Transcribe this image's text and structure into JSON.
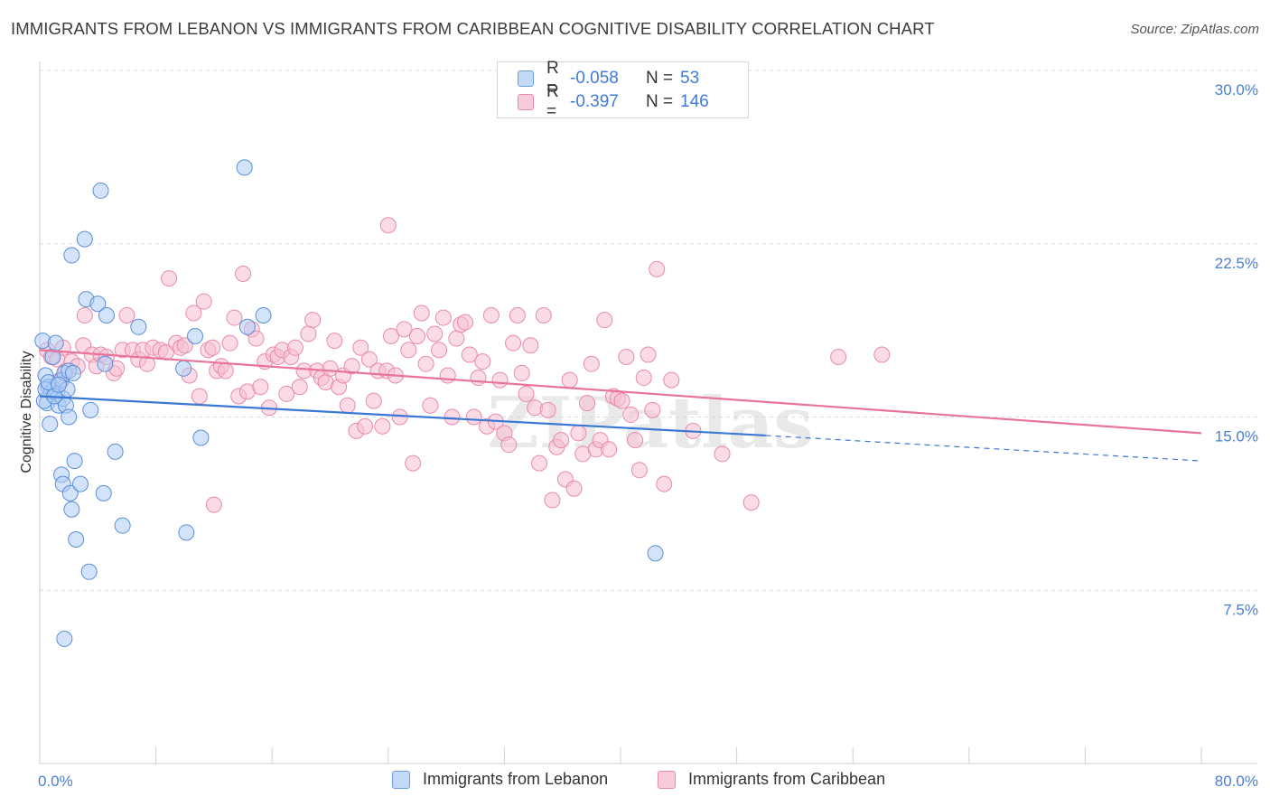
{
  "title": "IMMIGRANTS FROM LEBANON VS IMMIGRANTS FROM CARIBBEAN COGNITIVE DISABILITY CORRELATION CHART",
  "source": "Source: ZipAtlas.com",
  "watermark": "ZIPatlas",
  "legend": {
    "rows": [
      {
        "r_label": "R =",
        "r_value": "-0.058",
        "n_label": "N =",
        "n_value": "53",
        "color": "#aeccf5",
        "border": "#6a9de0"
      },
      {
        "r_label": "R =",
        "r_value": "-0.397",
        "n_label": "N =",
        "n_value": "146",
        "color": "#f7bfd2",
        "border": "#e88aab"
      }
    ]
  },
  "bottom_legend": {
    "lebanon": "Immigrants from Lebanon",
    "caribbean": "Immigrants from Caribbean"
  },
  "chart_data": {
    "type": "scatter",
    "ylabel": "Cognitive Disability",
    "xlabel": "",
    "xlim": [
      0,
      80
    ],
    "ylim": [
      0,
      30
    ],
    "x_tick_labels": [
      "0.0%",
      "80.0%"
    ],
    "y_ticks": [
      7.5,
      15.0,
      22.5,
      30.0
    ],
    "y_tick_labels": [
      "7.5%",
      "15.0%",
      "22.5%",
      "30.0%"
    ],
    "grid": "horizontal dashed",
    "colors": {
      "lebanon": "#3a78d4",
      "caribbean": "#e8739b"
    },
    "series": [
      {
        "name": "Immigrants from Lebanon",
        "trend": {
          "x": [
            0,
            50
          ],
          "y": [
            15.9,
            14.2
          ],
          "dashed_to": [
            80,
            13.1
          ]
        },
        "points": [
          [
            0.2,
            18.3
          ],
          [
            0.4,
            16.8
          ],
          [
            0.5,
            15.6
          ],
          [
            0.6,
            16.3
          ],
          [
            0.7,
            14.7
          ],
          [
            0.8,
            16.1
          ],
          [
            0.9,
            17.6
          ],
          [
            1.0,
            16.2
          ],
          [
            1.1,
            18.2
          ],
          [
            1.2,
            16.0
          ],
          [
            1.3,
            15.5
          ],
          [
            1.5,
            16.6
          ],
          [
            1.6,
            15.8
          ],
          [
            1.7,
            16.9
          ],
          [
            1.8,
            15.5
          ],
          [
            1.9,
            16.2
          ],
          [
            1.5,
            12.5
          ],
          [
            1.6,
            12.1
          ],
          [
            2.0,
            17.0
          ],
          [
            2.0,
            15.0
          ],
          [
            2.1,
            11.7
          ],
          [
            2.2,
            11.0
          ],
          [
            2.3,
            16.9
          ],
          [
            2.4,
            13.1
          ],
          [
            2.2,
            22.0
          ],
          [
            2.5,
            9.7
          ],
          [
            2.8,
            12.1
          ],
          [
            3.1,
            22.7
          ],
          [
            3.2,
            20.1
          ],
          [
            3.4,
            8.3
          ],
          [
            3.5,
            15.3
          ],
          [
            4.0,
            19.9
          ],
          [
            4.2,
            24.8
          ],
          [
            4.4,
            11.7
          ],
          [
            4.5,
            17.3
          ],
          [
            4.6,
            19.4
          ],
          [
            5.2,
            13.5
          ],
          [
            5.7,
            10.3
          ],
          [
            6.8,
            18.9
          ],
          [
            9.9,
            17.1
          ],
          [
            10.1,
            10.0
          ],
          [
            10.7,
            18.5
          ],
          [
            11.1,
            14.1
          ],
          [
            14.1,
            25.8
          ],
          [
            14.3,
            18.9
          ],
          [
            15.4,
            19.4
          ],
          [
            42.4,
            9.1
          ],
          [
            1.7,
            5.4
          ],
          [
            0.3,
            15.7
          ],
          [
            0.4,
            16.2
          ],
          [
            0.6,
            16.5
          ],
          [
            1.0,
            15.9
          ],
          [
            1.3,
            16.4
          ]
        ]
      },
      {
        "name": "Immigrants from Caribbean",
        "trend": {
          "x": [
            0,
            80
          ],
          "y": [
            17.9,
            14.3
          ]
        },
        "points": [
          [
            0.5,
            17.9
          ],
          [
            0.8,
            17.6
          ],
          [
            1.2,
            17.5
          ],
          [
            1.4,
            16.6
          ],
          [
            1.6,
            18.0
          ],
          [
            1.8,
            17.0
          ],
          [
            2.2,
            17.4
          ],
          [
            2.6,
            17.2
          ],
          [
            3.0,
            18.1
          ],
          [
            3.1,
            19.4
          ],
          [
            3.6,
            17.7
          ],
          [
            3.9,
            17.2
          ],
          [
            4.2,
            17.7
          ],
          [
            4.6,
            17.6
          ],
          [
            5.1,
            16.9
          ],
          [
            5.3,
            17.1
          ],
          [
            5.7,
            17.9
          ],
          [
            6.0,
            19.4
          ],
          [
            6.4,
            17.9
          ],
          [
            6.8,
            17.5
          ],
          [
            7.1,
            17.9
          ],
          [
            7.4,
            17.3
          ],
          [
            7.8,
            18.0
          ],
          [
            8.3,
            17.9
          ],
          [
            8.7,
            17.8
          ],
          [
            8.9,
            21.0
          ],
          [
            9.4,
            18.2
          ],
          [
            9.7,
            18.0
          ],
          [
            10.0,
            18.1
          ],
          [
            10.3,
            16.8
          ],
          [
            10.6,
            19.5
          ],
          [
            11.0,
            15.9
          ],
          [
            11.3,
            20.0
          ],
          [
            11.6,
            17.9
          ],
          [
            11.9,
            18.0
          ],
          [
            12.2,
            17.0
          ],
          [
            12.5,
            17.2
          ],
          [
            12.8,
            17.0
          ],
          [
            13.1,
            18.2
          ],
          [
            13.4,
            19.3
          ],
          [
            13.7,
            15.9
          ],
          [
            14.0,
            21.2
          ],
          [
            14.3,
            16.1
          ],
          [
            14.6,
            18.8
          ],
          [
            14.9,
            18.4
          ],
          [
            15.2,
            16.3
          ],
          [
            15.5,
            17.4
          ],
          [
            15.8,
            15.4
          ],
          [
            16.1,
            17.7
          ],
          [
            16.4,
            17.6
          ],
          [
            16.7,
            17.9
          ],
          [
            17.0,
            16.0
          ],
          [
            17.3,
            17.6
          ],
          [
            17.6,
            18.0
          ],
          [
            17.9,
            16.3
          ],
          [
            18.2,
            17.0
          ],
          [
            18.5,
            18.6
          ],
          [
            18.8,
            19.2
          ],
          [
            19.1,
            17.0
          ],
          [
            19.4,
            16.7
          ],
          [
            19.7,
            16.5
          ],
          [
            20.0,
            17.1
          ],
          [
            20.3,
            18.3
          ],
          [
            20.6,
            16.3
          ],
          [
            20.9,
            16.8
          ],
          [
            21.2,
            15.5
          ],
          [
            21.5,
            17.2
          ],
          [
            21.8,
            14.4
          ],
          [
            22.1,
            18.0
          ],
          [
            22.4,
            14.6
          ],
          [
            22.7,
            17.5
          ],
          [
            23.0,
            15.7
          ],
          [
            23.3,
            17.0
          ],
          [
            23.6,
            14.6
          ],
          [
            23.9,
            17.0
          ],
          [
            24.2,
            18.5
          ],
          [
            24.5,
            16.8
          ],
          [
            24.8,
            15.0
          ],
          [
            25.1,
            18.8
          ],
          [
            25.4,
            17.9
          ],
          [
            25.7,
            13.0
          ],
          [
            26.0,
            18.5
          ],
          [
            26.3,
            19.5
          ],
          [
            26.6,
            17.3
          ],
          [
            26.9,
            15.5
          ],
          [
            27.2,
            18.6
          ],
          [
            27.5,
            17.9
          ],
          [
            27.8,
            19.3
          ],
          [
            28.1,
            16.8
          ],
          [
            28.4,
            15.0
          ],
          [
            28.7,
            18.4
          ],
          [
            29.0,
            19.0
          ],
          [
            29.3,
            19.1
          ],
          [
            29.6,
            17.7
          ],
          [
            29.9,
            15.0
          ],
          [
            30.2,
            16.7
          ],
          [
            30.5,
            17.4
          ],
          [
            30.8,
            14.6
          ],
          [
            31.1,
            19.4
          ],
          [
            31.4,
            14.8
          ],
          [
            31.7,
            16.6
          ],
          [
            32.0,
            14.3
          ],
          [
            32.3,
            13.8
          ],
          [
            32.6,
            18.2
          ],
          [
            32.9,
            19.4
          ],
          [
            33.2,
            16.9
          ],
          [
            33.5,
            16.0
          ],
          [
            33.8,
            18.1
          ],
          [
            34.1,
            15.4
          ],
          [
            34.4,
            13.0
          ],
          [
            34.7,
            19.4
          ],
          [
            35.0,
            15.3
          ],
          [
            35.3,
            11.4
          ],
          [
            35.6,
            13.7
          ],
          [
            35.9,
            14.0
          ],
          [
            36.2,
            12.3
          ],
          [
            36.5,
            16.6
          ],
          [
            36.8,
            11.9
          ],
          [
            37.1,
            14.3
          ],
          [
            37.4,
            13.4
          ],
          [
            37.7,
            15.6
          ],
          [
            38.0,
            17.3
          ],
          [
            38.3,
            13.6
          ],
          [
            38.6,
            14.0
          ],
          [
            38.9,
            19.2
          ],
          [
            39.2,
            13.6
          ],
          [
            39.5,
            15.9
          ],
          [
            39.8,
            15.8
          ],
          [
            40.1,
            15.7
          ],
          [
            40.4,
            17.6
          ],
          [
            40.7,
            15.1
          ],
          [
            41.0,
            14.0
          ],
          [
            41.3,
            12.7
          ],
          [
            41.6,
            16.7
          ],
          [
            41.9,
            17.7
          ],
          [
            42.2,
            15.3
          ],
          [
            42.5,
            21.4
          ],
          [
            43.0,
            12.1
          ],
          [
            45.0,
            14.4
          ],
          [
            47.0,
            13.4
          ],
          [
            49.0,
            11.3
          ],
          [
            55.0,
            17.6
          ],
          [
            58.0,
            17.7
          ],
          [
            24.0,
            23.3
          ],
          [
            12.0,
            11.2
          ],
          [
            43.5,
            16.6
          ]
        ]
      }
    ]
  }
}
